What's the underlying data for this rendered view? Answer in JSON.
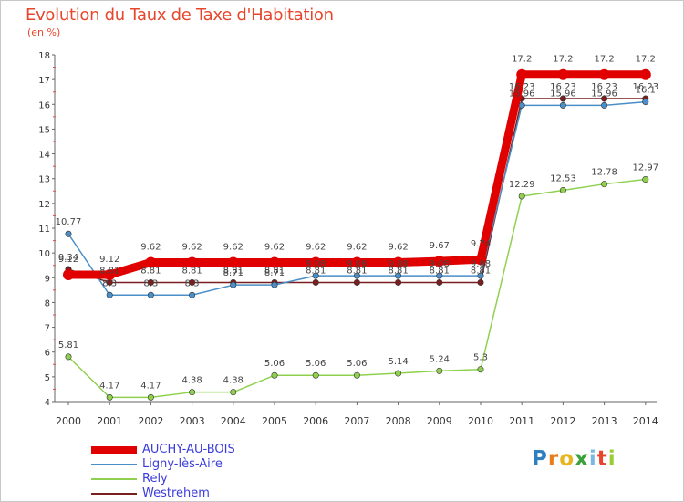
{
  "chart_data": {
    "type": "line",
    "title": "Evolution du Taux de Taxe d'Habitation",
    "subtitle": "(en %)",
    "xlabel": "",
    "ylabel": "(en %)",
    "x": [
      "2000",
      "2001",
      "2002",
      "2003",
      "2004",
      "2005",
      "2006",
      "2007",
      "2008",
      "2009",
      "2010",
      "2011",
      "2012",
      "2013",
      "2014"
    ],
    "ylim": [
      4,
      18
    ],
    "yticks": [
      "4",
      "5",
      "6",
      "7",
      "8",
      "9",
      "10",
      "11",
      "12",
      "13",
      "14",
      "15",
      "16",
      "17",
      "18"
    ],
    "grid": false,
    "legend_position": "bottom-left",
    "series": [
      {
        "name": "Westrehem",
        "color": "#7a1f1f",
        "values": [
          9.34,
          8.81,
          8.81,
          8.81,
          8.81,
          8.81,
          8.81,
          8.81,
          8.81,
          8.81,
          8.81,
          16.23,
          16.23,
          16.23,
          16.23
        ],
        "labels": [
          "9.34",
          "8.81",
          "8.81",
          "8.81",
          "8.81",
          "8.81",
          "8.81",
          "8.81",
          "8.81",
          "8.81",
          "8.81",
          "16.23",
          "16.23",
          "16.23",
          "16.23"
        ]
      },
      {
        "name": "Rely",
        "color": "#8fd14f",
        "values": [
          5.81,
          4.17,
          4.17,
          4.38,
          4.38,
          5.06,
          5.06,
          5.06,
          5.14,
          5.24,
          5.3,
          12.29,
          12.53,
          12.78,
          12.97
        ],
        "labels": [
          "5.81",
          "4.17",
          "4.17",
          "4.38",
          "4.38",
          "5.06",
          "5.06",
          "5.06",
          "5.14",
          "5.24",
          "5.3",
          "12.29",
          "12.53",
          "12.78",
          "12.97"
        ]
      },
      {
        "name": "Ligny-lès-Aire",
        "color": "#4a8fc8",
        "values": [
          10.77,
          8.3,
          8.3,
          8.3,
          8.71,
          8.71,
          9.08,
          9.08,
          9.08,
          9.08,
          9.08,
          15.96,
          15.96,
          15.96,
          16.1
        ],
        "labels": [
          "10.77",
          "8.3",
          "8.3",
          "8.3",
          "8.71",
          "8.71",
          "9.08",
          "9.08",
          "9.08",
          "9.08",
          "9.08",
          "15.96",
          "15.96",
          "15.96",
          "16.1"
        ]
      },
      {
        "name": "AUCHY-AU-BOIS",
        "color": "#e00000",
        "values": [
          9.12,
          9.12,
          9.62,
          9.62,
          9.62,
          9.62,
          9.62,
          9.62,
          9.62,
          9.67,
          9.74,
          17.2,
          17.2,
          17.2,
          17.2
        ],
        "labels": [
          "9.12",
          "9.12",
          "9.62",
          "9.62",
          "9.62",
          "9.62",
          "9.62",
          "9.62",
          "9.62",
          "9.67",
          "9.74",
          "17.2",
          "17.2",
          "17.2",
          "17.2"
        ]
      }
    ]
  },
  "legend": {
    "items": [
      {
        "label": "AUCHY-AU-BOIS",
        "color": "#e00000"
      },
      {
        "label": "Ligny-lès-Aire",
        "color": "#4a8fc8"
      },
      {
        "label": "Rely",
        "color": "#8fd14f"
      },
      {
        "label": "Westrehem",
        "color": "#7a1f1f"
      }
    ]
  },
  "logo": {
    "letters": [
      "P",
      "r",
      "o",
      "x",
      "i",
      "t",
      "i"
    ],
    "colors": [
      "#2f7fc1",
      "#e87d1e",
      "#e8b51e",
      "#3aa23a",
      "#7ab8e0",
      "#e8462c",
      "#9acd32"
    ]
  }
}
